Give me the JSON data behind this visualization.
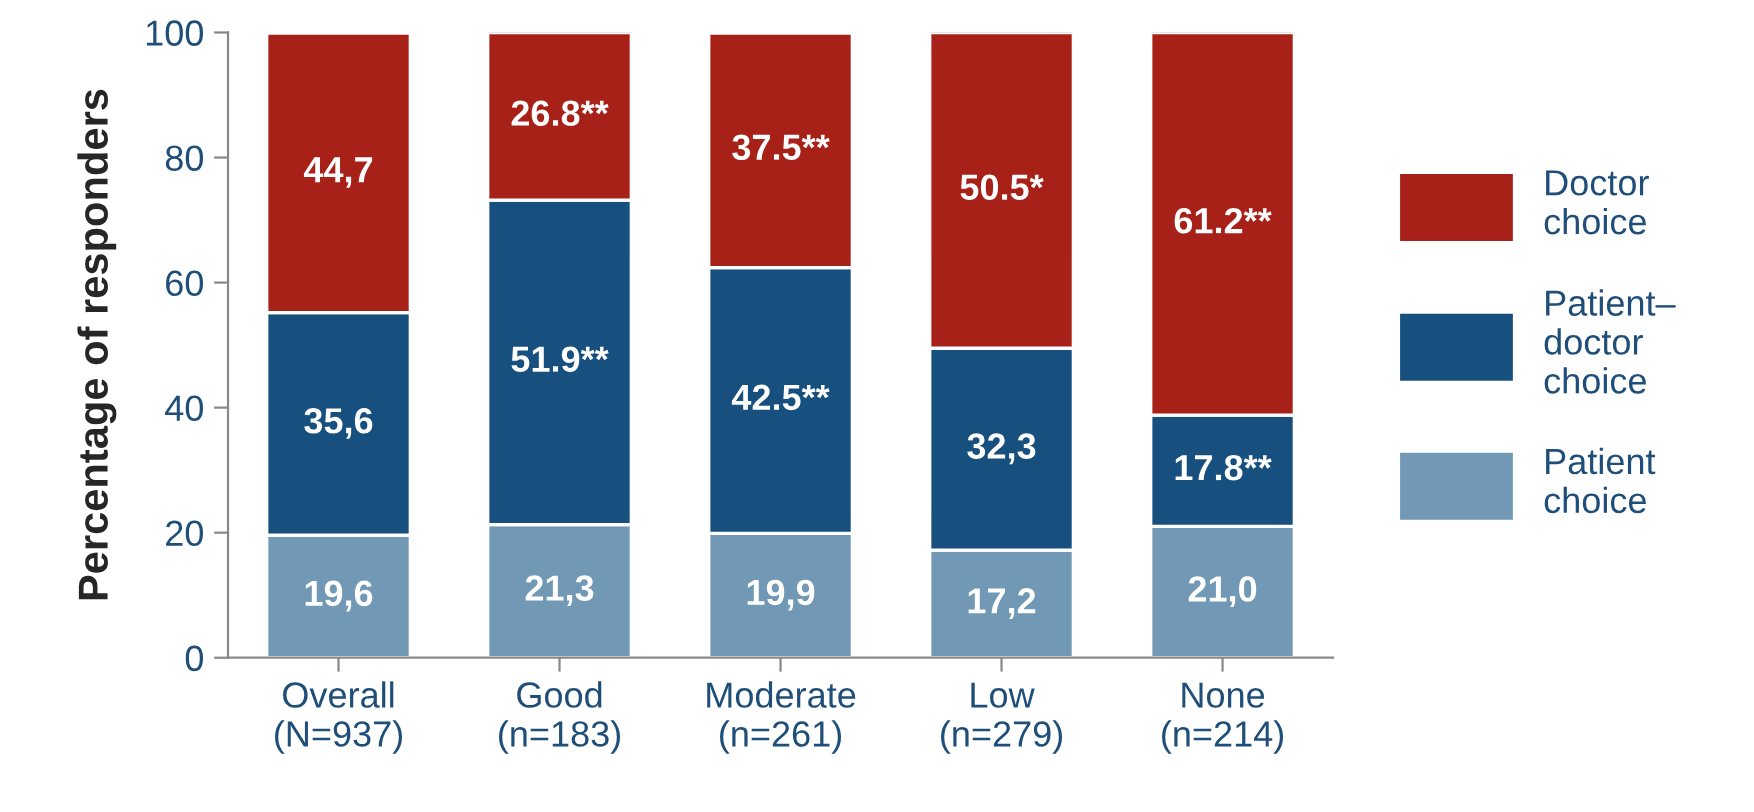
{
  "chart_data": {
    "type": "bar",
    "stacked": true,
    "ylabel": "Percentage of responders",
    "categories": [
      "Overall\n(N=937)",
      "Good\n(n=183)",
      "Moderate\n(n=261)",
      "Low\n(n=279)",
      "None\n(n=214)"
    ],
    "series": [
      {
        "name": "Patient choice",
        "color": "#7199b5",
        "values": [
          19.6,
          21.3,
          19.9,
          17.2,
          21.0
        ],
        "value_labels": [
          "19,6",
          "21,3",
          "19,9",
          "17,2",
          "21,0"
        ]
      },
      {
        "name": "Patient–doctor choice",
        "color": "#174f7f",
        "values": [
          35.6,
          51.9,
          42.5,
          32.3,
          17.8
        ],
        "value_labels": [
          "35,6",
          "51.9**",
          "42.5**",
          "32,3",
          "17.8**"
        ]
      },
      {
        "name": "Doctor choice",
        "color": "#a82118",
        "values": [
          44.7,
          26.8,
          37.5,
          50.5,
          61.2
        ],
        "value_labels": [
          "44,7",
          "26.8**",
          "37.5**",
          "50.5*",
          "61.2**"
        ]
      }
    ],
    "ylim": [
      0,
      100
    ],
    "yticks": [
      0,
      20,
      40,
      60,
      80,
      100
    ],
    "grid": false,
    "legend": "right"
  }
}
